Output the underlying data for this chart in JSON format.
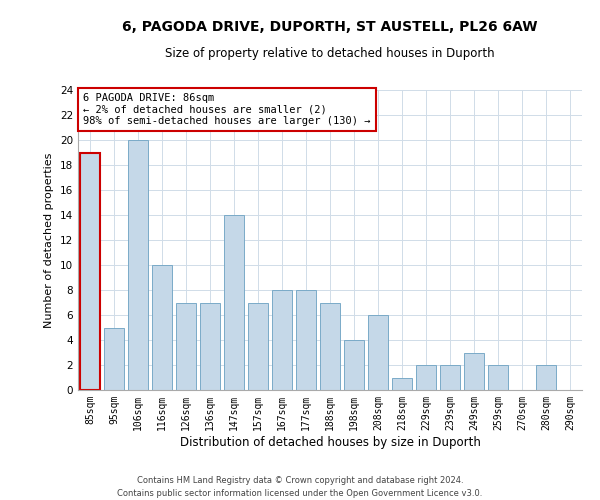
{
  "title": "6, PAGODA DRIVE, DUPORTH, ST AUSTELL, PL26 6AW",
  "subtitle": "Size of property relative to detached houses in Duporth",
  "xlabel": "Distribution of detached houses by size in Duporth",
  "ylabel": "Number of detached properties",
  "categories": [
    "85sqm",
    "95sqm",
    "106sqm",
    "116sqm",
    "126sqm",
    "136sqm",
    "147sqm",
    "157sqm",
    "167sqm",
    "177sqm",
    "188sqm",
    "198sqm",
    "208sqm",
    "218sqm",
    "229sqm",
    "239sqm",
    "249sqm",
    "259sqm",
    "270sqm",
    "280sqm",
    "290sqm"
  ],
  "values": [
    19,
    5,
    20,
    10,
    7,
    7,
    14,
    7,
    8,
    8,
    7,
    4,
    6,
    1,
    2,
    2,
    3,
    2,
    0,
    2,
    0
  ],
  "bar_color": "#c5d8e8",
  "bar_edge_color": "#7aaac8",
  "highlight_bar_index": 0,
  "highlight_edge_color": "#cc0000",
  "annotation_box_text": "6 PAGODA DRIVE: 86sqm\n← 2% of detached houses are smaller (2)\n98% of semi-detached houses are larger (130) →",
  "ylim": [
    0,
    24
  ],
  "yticks": [
    0,
    2,
    4,
    6,
    8,
    10,
    12,
    14,
    16,
    18,
    20,
    22,
    24
  ],
  "footer_line1": "Contains HM Land Registry data © Crown copyright and database right 2024.",
  "footer_line2": "Contains public sector information licensed under the Open Government Licence v3.0.",
  "background_color": "#ffffff",
  "grid_color": "#d0dce8"
}
